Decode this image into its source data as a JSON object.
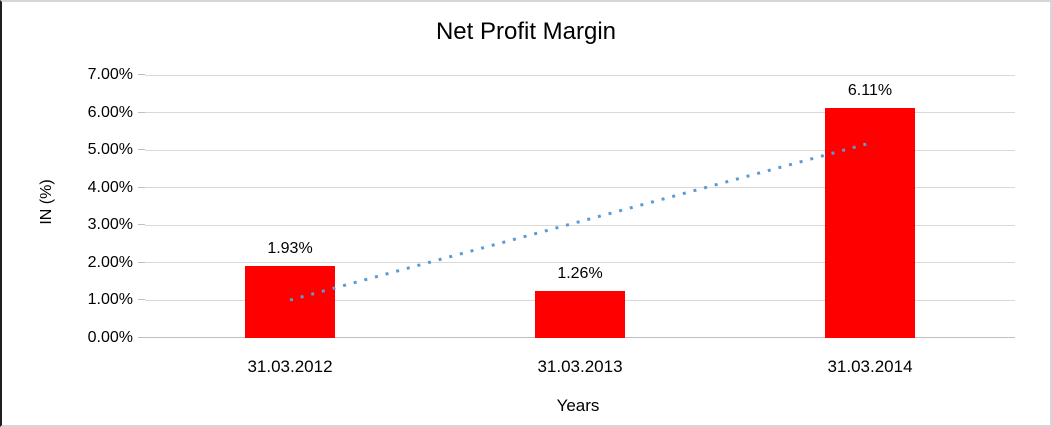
{
  "chart_data": {
    "type": "bar",
    "title": "Net Profit Margin",
    "xlabel": "Years",
    "ylabel": "IN (%)",
    "categories": [
      "31.03.2012",
      "31.03.2013",
      "31.03.2014"
    ],
    "series": [
      {
        "name": "Net Profit Margin",
        "values": [
          1.93,
          1.26,
          6.11
        ]
      }
    ],
    "data_labels": [
      "1.93%",
      "1.26%",
      "6.11%"
    ],
    "y_ticks": [
      "0.00%",
      "1.00%",
      "2.00%",
      "3.00%",
      "4.00%",
      "5.00%",
      "6.00%",
      "7.00%"
    ],
    "ylim": [
      0,
      7
    ],
    "grid": "horizontal",
    "legend": "none",
    "colors": {
      "bar": "#ff0000",
      "trendline": "#5b9bd5",
      "gridline": "#d9d9d9",
      "axis_line": "#bfbfbf",
      "text": "#000000"
    },
    "trendline": {
      "type": "linear",
      "style": "dotted",
      "start_value": 1.01,
      "end_value": 5.19
    }
  }
}
